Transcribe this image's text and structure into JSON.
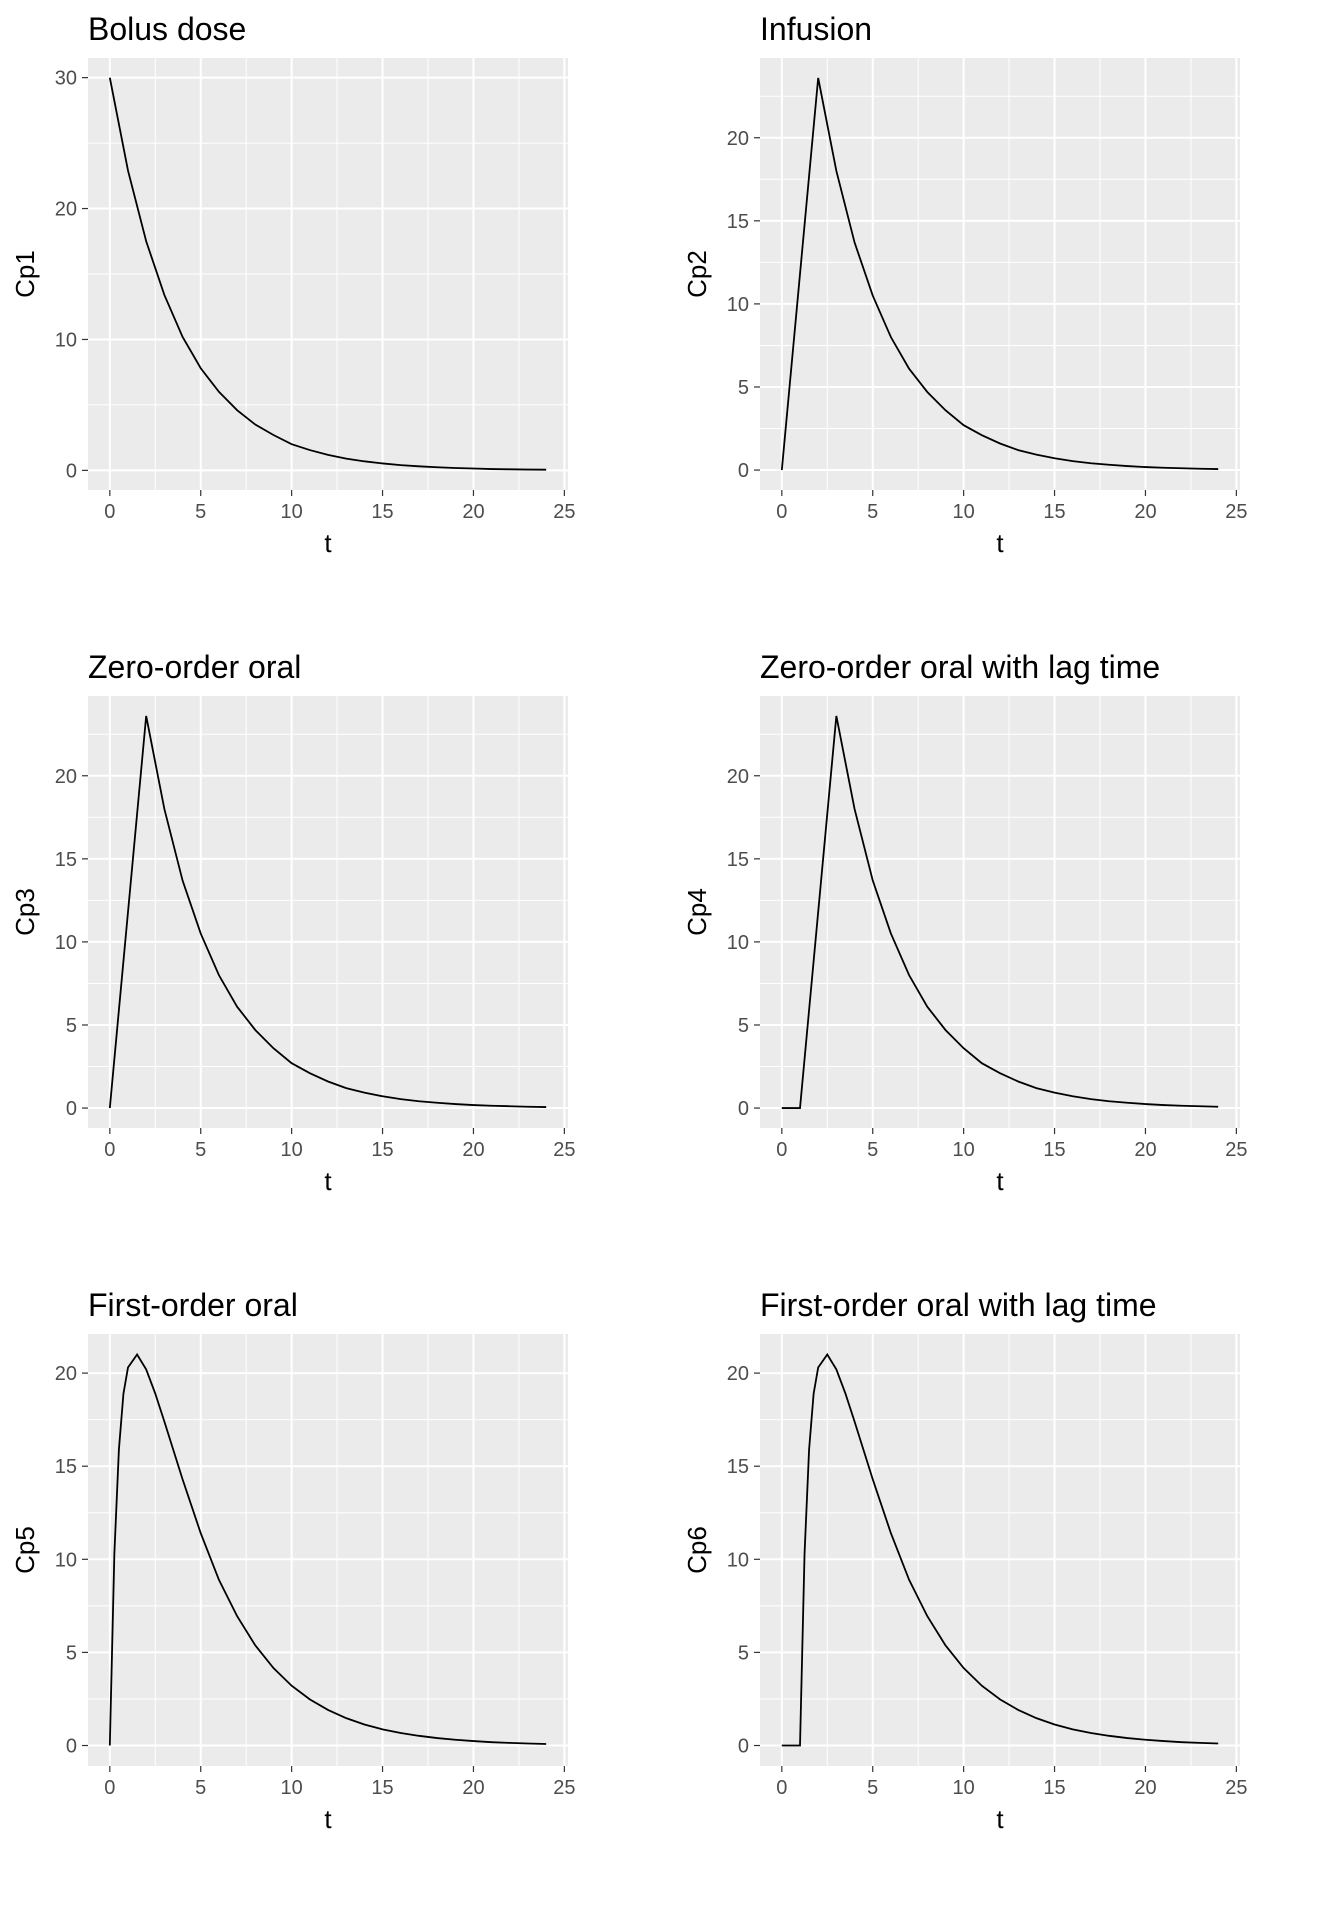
{
  "chart_data": [
    {
      "type": "line",
      "title": "Bolus dose",
      "xlabel": "t",
      "ylabel": "Cp1",
      "xlim": [
        -1.2,
        25.2
      ],
      "ylim": [
        -1.5,
        31.5
      ],
      "xticks": [
        0,
        5,
        10,
        15,
        20,
        25
      ],
      "yticks": [
        0,
        10,
        20,
        30
      ],
      "grid": true,
      "series": [
        {
          "x": [
            0,
            1,
            2,
            3,
            4,
            5,
            6,
            7,
            8,
            9,
            10,
            11,
            12,
            13,
            14,
            15,
            16,
            17,
            18,
            19,
            20,
            21,
            22,
            23,
            24
          ],
          "y": [
            30,
            22.9,
            17.5,
            13.4,
            10.2,
            7.8,
            6.0,
            4.6,
            3.5,
            2.7,
            2.0,
            1.55,
            1.18,
            0.9,
            0.69,
            0.53,
            0.4,
            0.31,
            0.24,
            0.18,
            0.14,
            0.1,
            0.08,
            0.06,
            0.05
          ]
        }
      ]
    },
    {
      "type": "line",
      "title": "Infusion",
      "xlabel": "t",
      "ylabel": "Cp2",
      "xlim": [
        -1.2,
        25.2
      ],
      "ylim": [
        -1.2,
        24.8
      ],
      "xticks": [
        0,
        5,
        10,
        15,
        20,
        25
      ],
      "yticks": [
        0,
        5,
        10,
        15,
        20
      ],
      "grid": true,
      "series": [
        {
          "x": [
            0,
            1,
            2,
            3,
            4,
            5,
            6,
            7,
            8,
            9,
            10,
            11,
            12,
            13,
            14,
            15,
            16,
            17,
            18,
            19,
            20,
            21,
            22,
            23,
            24
          ],
          "y": [
            0,
            11.8,
            23.6,
            18.0,
            13.7,
            10.5,
            8.0,
            6.1,
            4.7,
            3.6,
            2.7,
            2.1,
            1.6,
            1.2,
            0.93,
            0.71,
            0.54,
            0.41,
            0.32,
            0.24,
            0.18,
            0.14,
            0.11,
            0.08,
            0.06
          ]
        }
      ]
    },
    {
      "type": "line",
      "title": "Zero-order oral",
      "xlabel": "t",
      "ylabel": "Cp3",
      "xlim": [
        -1.2,
        25.2
      ],
      "ylim": [
        -1.2,
        24.8
      ],
      "xticks": [
        0,
        5,
        10,
        15,
        20,
        25
      ],
      "yticks": [
        0,
        5,
        10,
        15,
        20
      ],
      "grid": true,
      "series": [
        {
          "x": [
            0,
            1,
            2,
            3,
            4,
            5,
            6,
            7,
            8,
            9,
            10,
            11,
            12,
            13,
            14,
            15,
            16,
            17,
            18,
            19,
            20,
            21,
            22,
            23,
            24
          ],
          "y": [
            0,
            11.8,
            23.6,
            18.0,
            13.7,
            10.5,
            8.0,
            6.1,
            4.7,
            3.6,
            2.7,
            2.1,
            1.6,
            1.2,
            0.93,
            0.71,
            0.54,
            0.41,
            0.32,
            0.24,
            0.18,
            0.14,
            0.11,
            0.08,
            0.06
          ]
        }
      ]
    },
    {
      "type": "line",
      "title": "Zero-order oral with lag time",
      "xlabel": "t",
      "ylabel": "Cp4",
      "xlim": [
        -1.2,
        25.2
      ],
      "ylim": [
        -1.2,
        24.8
      ],
      "xticks": [
        0,
        5,
        10,
        15,
        20,
        25
      ],
      "yticks": [
        0,
        5,
        10,
        15,
        20
      ],
      "grid": true,
      "series": [
        {
          "x": [
            0,
            1,
            2,
            3,
            4,
            5,
            6,
            7,
            8,
            9,
            10,
            11,
            12,
            13,
            14,
            15,
            16,
            17,
            18,
            19,
            20,
            21,
            22,
            23,
            24
          ],
          "y": [
            0,
            0,
            11.8,
            23.6,
            18.0,
            13.7,
            10.5,
            8.0,
            6.1,
            4.7,
            3.6,
            2.7,
            2.1,
            1.6,
            1.2,
            0.93,
            0.71,
            0.54,
            0.41,
            0.32,
            0.24,
            0.18,
            0.14,
            0.11,
            0.08
          ]
        }
      ]
    },
    {
      "type": "line",
      "title": "First-order oral",
      "xlabel": "t",
      "ylabel": "Cp5",
      "xlim": [
        -1.2,
        25.2
      ],
      "ylim": [
        -1.1,
        22.1
      ],
      "xticks": [
        0,
        5,
        10,
        15,
        20,
        25
      ],
      "yticks": [
        0,
        5,
        10,
        15,
        20
      ],
      "grid": true,
      "series": [
        {
          "x": [
            0,
            0.25,
            0.5,
            0.75,
            1,
            1.5,
            2,
            2.5,
            3,
            4,
            5,
            6,
            7,
            8,
            9,
            10,
            11,
            12,
            13,
            14,
            15,
            16,
            17,
            18,
            19,
            20,
            21,
            22,
            23,
            24
          ],
          "y": [
            0,
            10.3,
            15.9,
            18.9,
            20.3,
            21.0,
            20.2,
            18.9,
            17.4,
            14.3,
            11.4,
            8.9,
            6.95,
            5.38,
            4.16,
            3.21,
            2.48,
            1.91,
            1.47,
            1.13,
            0.87,
            0.67,
            0.52,
            0.4,
            0.31,
            0.24,
            0.18,
            0.14,
            0.11,
            0.08
          ]
        }
      ]
    },
    {
      "type": "line",
      "title": "First-order oral with lag time",
      "xlabel": "t",
      "ylabel": "Cp6",
      "xlim": [
        -1.2,
        25.2
      ],
      "ylim": [
        -1.1,
        22.1
      ],
      "xticks": [
        0,
        5,
        10,
        15,
        20,
        25
      ],
      "yticks": [
        0,
        5,
        10,
        15,
        20
      ],
      "grid": true,
      "series": [
        {
          "x": [
            0,
            1,
            1.25,
            1.5,
            1.75,
            2,
            2.5,
            3,
            3.5,
            4,
            5,
            6,
            7,
            8,
            9,
            10,
            11,
            12,
            13,
            14,
            15,
            16,
            17,
            18,
            19,
            20,
            21,
            22,
            23,
            24
          ],
          "y": [
            0,
            0,
            10.3,
            15.9,
            18.9,
            20.3,
            21.0,
            20.2,
            18.9,
            17.4,
            14.3,
            11.4,
            8.9,
            6.95,
            5.38,
            4.16,
            3.21,
            2.48,
            1.91,
            1.47,
            1.13,
            0.87,
            0.67,
            0.52,
            0.4,
            0.31,
            0.24,
            0.18,
            0.14,
            0.11
          ]
        }
      ]
    }
  ]
}
